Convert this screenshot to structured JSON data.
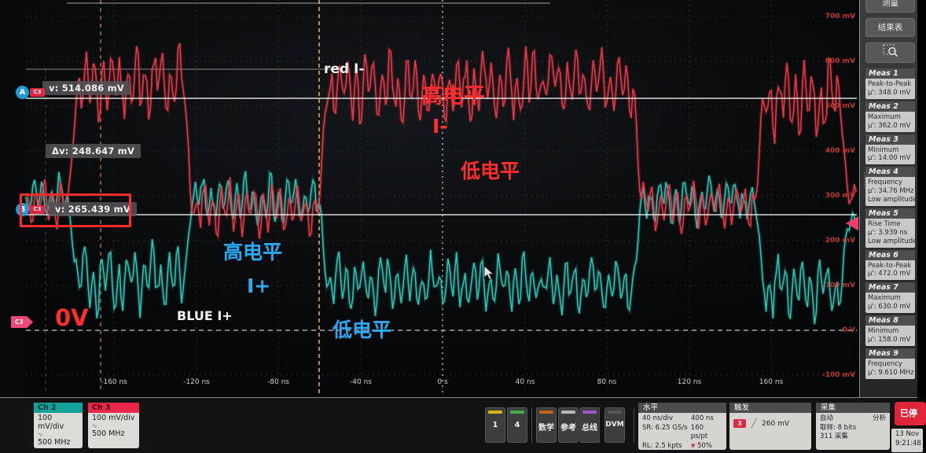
{
  "cursors": {
    "a_badge": "A",
    "b_badge": "B",
    "channel_tag": "C3",
    "a_value": "v: 514.086 mV",
    "delta_value": "Δv: 248.647 mV",
    "b_value": "v: 265.439 mV"
  },
  "annotations": {
    "red_trace_label": "red  I-",
    "red_high_level": "高电平",
    "red_signal": "I-",
    "red_low_level": "低电平",
    "blue_high_level": "高电平",
    "blue_signal": "I+",
    "blue_trace_label": "BLUE I+",
    "blue_low_level": "低电平",
    "zero_volt": "0V"
  },
  "sidebar": {
    "buttons": {
      "measure": "测量",
      "results_table": "结果表"
    },
    "measurements": [
      {
        "title": "Meas 1",
        "name": "Peak-to-Peak",
        "value": "μ': 348.0 mV"
      },
      {
        "title": "Meas 2",
        "name": "Maximum",
        "value": "μ': 362.0 mV"
      },
      {
        "title": "Meas 3",
        "name": "Minimum",
        "value": "μ': 14.00 mV"
      },
      {
        "title": "Meas 4",
        "name": "Frequency",
        "value": "μ': 34.76 MHz",
        "note": "Low amplitude"
      },
      {
        "title": "Meas 5",
        "name": "Rise Time",
        "value": "μ': 3.939 ns",
        "note": "Low amplitude"
      },
      {
        "title": "Meas 6",
        "name": "Peak-to-Peak",
        "value": "μ': 472.0 mV"
      },
      {
        "title": "Meas 7",
        "name": "Maximum",
        "value": "μ': 630.0 mV"
      },
      {
        "title": "Meas 8",
        "name": "Minimum",
        "value": "μ': 158.0 mV"
      },
      {
        "title": "Meas 9",
        "name": "Frequency",
        "value": "μ': 9.610 MHz"
      }
    ]
  },
  "channels": [
    {
      "name": "Ch 2",
      "scale": "100 mV/div",
      "bandwidth": "500 MHz",
      "color": "#12a29a",
      "text": "#03302d"
    },
    {
      "name": "Ch 3",
      "scale": "100 mV/div",
      "bandwidth": "500 MHz",
      "color": "#e8274b",
      "text": "#4d0712"
    }
  ],
  "source_buttons": [
    {
      "label": "1",
      "bar": "#d4b414"
    },
    {
      "label": "4",
      "bar": "#3fae49"
    },
    {
      "label": "数学",
      "bar": "#c8601e"
    },
    {
      "label": "参考",
      "bar": "#b8b8b8"
    },
    {
      "label": "总线",
      "bar": "#9b59c8"
    },
    {
      "label": "DVM",
      "bar": "#555659"
    }
  ],
  "horizontal": {
    "title": "水平",
    "rows": [
      {
        "left": "40 ns/div",
        "right": "400 ns"
      },
      {
        "left": "SR: 6.25 GS/s",
        "right": "160 ps/pt"
      },
      {
        "left": "RL: 2.5 kpts",
        "right": "50%"
      }
    ]
  },
  "trigger": {
    "title": "触发",
    "badge": "3",
    "level": "260 mV"
  },
  "acquisition": {
    "title": "采集",
    "mode": "自动",
    "analyze": "分析",
    "sampling": "取样: 8 bits",
    "count": "311 采集"
  },
  "run_button": "已停",
  "datetime": {
    "date": "13 Nov",
    "time": "9:21:48"
  },
  "axes": {
    "time_labels": [
      "-160 ns",
      "-120 ns",
      "-80 ns",
      "-40 ns",
      "0 s",
      "40 ns",
      "80 ns",
      "120 ns",
      "160 ns"
    ],
    "volt_labels": [
      "700 mV",
      "600 mV",
      "500 mV",
      "400 mV",
      "300 mV",
      "200 mV",
      "100 mV",
      "0 V",
      "-100 mV"
    ]
  },
  "icons": {
    "bandwidth": "∿",
    "trigger_position": "▼",
    "rising_edge": "╱",
    "handle": "⋮"
  },
  "waveforms": {
    "volts_per_div": 100,
    "time_per_div": "40 ns",
    "ch3_red": {
      "color": "#ef3b49",
      "segments": [
        [
          33,
          85,
          285,
          120
        ],
        [
          100,
          232,
          552,
          190
        ],
        [
          246,
          404,
          272,
          140
        ],
        [
          418,
          548,
          538,
          200
        ],
        [
          562,
          680,
          545,
          195
        ],
        [
          696,
          804,
          548,
          185
        ],
        [
          818,
          958,
          278,
          120
        ],
        [
          974,
          1068,
          515,
          210
        ],
        [
          1080,
          1090,
          298,
          60
        ]
      ]
    },
    "ch2_cyan": {
      "color": "#2ad0c3",
      "segments": [
        [
          33,
          85,
          298,
          110
        ],
        [
          100,
          232,
          112,
          170
        ],
        [
          246,
          404,
          290,
          130
        ],
        [
          418,
          548,
          102,
          150
        ],
        [
          562,
          680,
          106,
          150
        ],
        [
          696,
          804,
          100,
          140
        ],
        [
          818,
          958,
          290,
          120
        ],
        [
          974,
          1068,
          96,
          165
        ],
        [
          1080,
          1090,
          238,
          60
        ]
      ]
    }
  }
}
